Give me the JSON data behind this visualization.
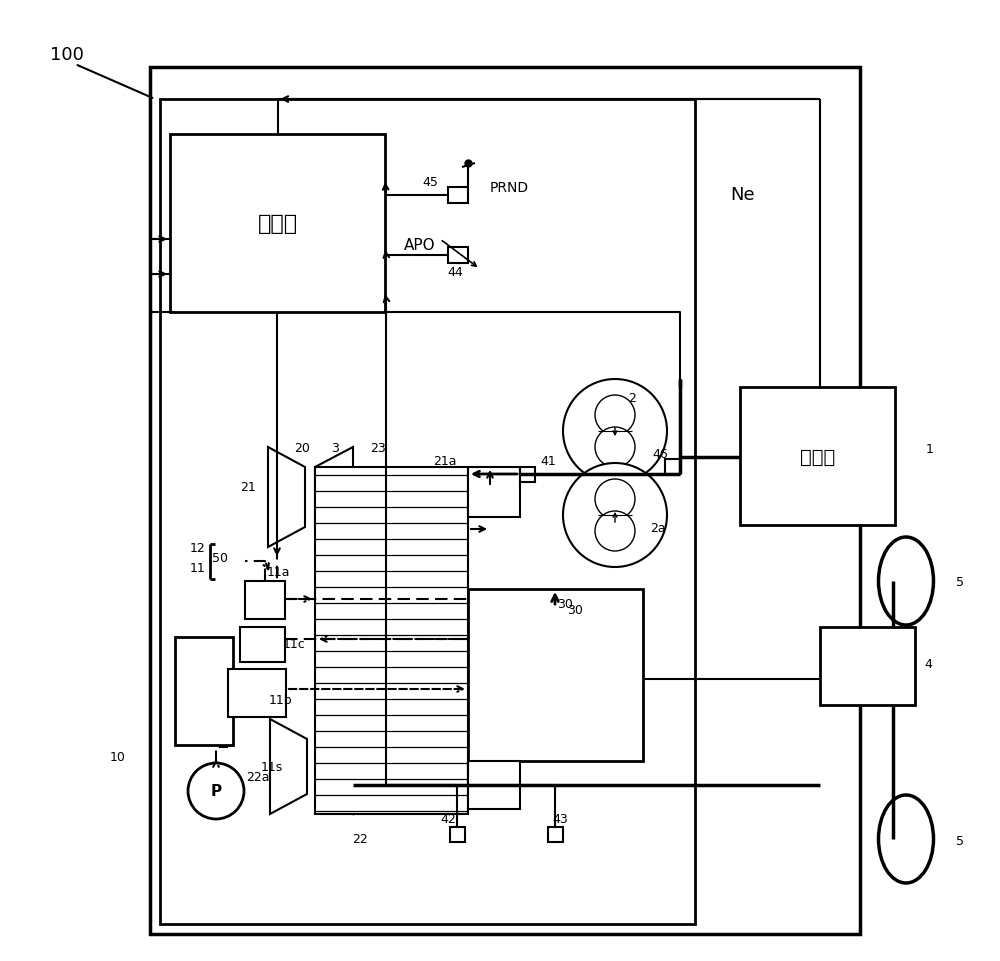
{
  "bg_color": "#ffffff",
  "lc": "#000000",
  "label_controller": "控制器",
  "label_engine": "发动机",
  "label_APO": "APO",
  "label_PRND": "PRND",
  "label_Ne": "Ne",
  "label_100": "100",
  "label_P": "P"
}
